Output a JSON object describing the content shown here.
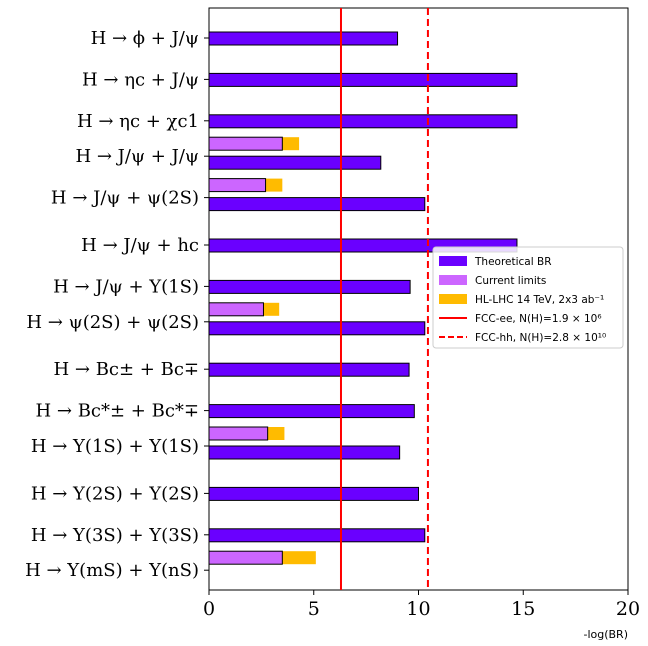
{
  "chart_data": {
    "type": "bar",
    "orientation": "horizontal",
    "xlabel": "-log(BR)",
    "xlim": [
      0,
      20
    ],
    "xticks": [
      "0",
      "5",
      "10",
      "15",
      "20"
    ],
    "categories": [
      "H → ϕ + J/ψ",
      "H → ηc + J/ψ",
      "H → ηc + χc1",
      "H → J/ψ + J/ψ",
      "H → J/ψ + ψ(2S)",
      "H → J/ψ + hc",
      "H → J/ψ + Υ(1S)",
      "H → ψ(2S) + ψ(2S)",
      "H → Bc± + Bc∓",
      "H → Bc*± + Bc*∓",
      "H → Υ(1S) + Υ(1S)",
      "H → Υ(2S) + Υ(2S)",
      "H → Υ(3S) + Υ(3S)",
      "H → Υ(mS) + Υ(nS)"
    ],
    "series": [
      {
        "name": "Theoretical BR",
        "color": "#6a00ff",
        "values": [
          9.0,
          14.7,
          14.7,
          8.2,
          10.3,
          14.7,
          9.6,
          10.3,
          9.55,
          9.8,
          9.1,
          10.0,
          10.3,
          null
        ]
      },
      {
        "name": "Current limits",
        "color": "#cc66ff",
        "values": [
          null,
          null,
          null,
          3.5,
          2.7,
          null,
          null,
          2.6,
          null,
          null,
          2.8,
          null,
          null,
          3.5
        ]
      },
      {
        "name": "HL-LHC 14 TeV, 2x3 ab⁻¹",
        "color": "#ffbb00",
        "values": [
          null,
          null,
          null,
          4.3,
          3.5,
          null,
          null,
          3.35,
          null,
          null,
          3.6,
          null,
          null,
          5.1
        ]
      }
    ],
    "reference_lines": [
      {
        "name": "FCC-ee, N(H)=1.9 × 10⁶",
        "x": 6.3,
        "style": "solid",
        "color": "#ff0000"
      },
      {
        "name": "FCC-hh, N(H)=2.8 × 10¹⁰",
        "x": 10.45,
        "style": "dashed",
        "color": "#ff0000"
      }
    ],
    "legend_position": "center-right"
  }
}
